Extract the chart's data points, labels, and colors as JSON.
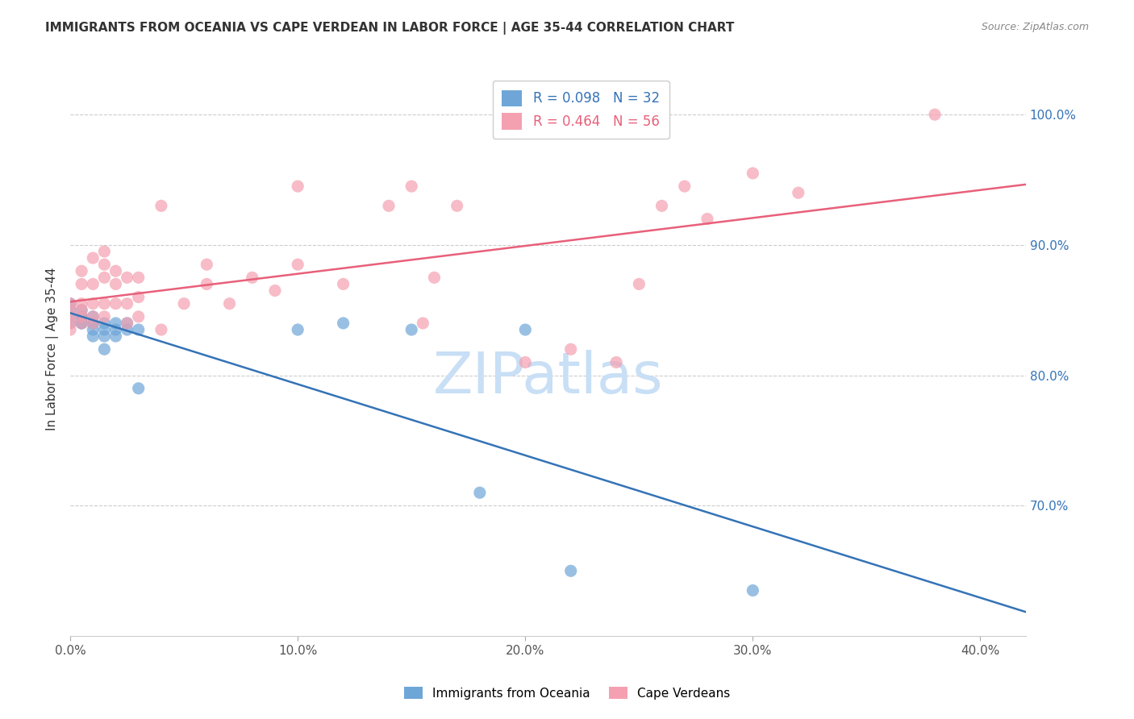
{
  "title": "IMMIGRANTS FROM OCEANIA VS CAPE VERDEAN IN LABOR FORCE | AGE 35-44 CORRELATION CHART",
  "source": "Source: ZipAtlas.com",
  "ylabel": "In Labor Force | Age 35-44",
  "right_yticks": [
    0.7,
    0.8,
    0.9,
    1.0
  ],
  "right_ytick_labels": [
    "70.0%",
    "80.0%",
    "90.0%",
    "100.0%"
  ],
  "xticks": [
    0.0,
    0.1,
    0.2,
    0.3,
    0.4
  ],
  "xtick_labels": [
    "0.0%",
    "10.0%",
    "20.0%",
    "30.0%",
    "40.0%"
  ],
  "xlim": [
    0.0,
    0.42
  ],
  "ylim": [
    0.6,
    1.04
  ],
  "blue_color": "#6ea6d8",
  "pink_color": "#f4a0b0",
  "blue_line_color": "#3473b7",
  "pink_line_color": "#e8607a",
  "legend_blue_R": "R = 0.098",
  "legend_blue_N": "N = 32",
  "legend_pink_R": "R = 0.464",
  "legend_pink_N": "N = 56",
  "watermark": "ZIPatlas",
  "watermark_color": "#c8dff5",
  "label_blue": "Immigrants from Oceania",
  "label_pink": "Cape Verdeans",
  "blue_x": [
    0.0,
    0.0,
    0.0,
    0.0,
    0.005,
    0.005,
    0.005,
    0.005,
    0.005,
    0.01,
    0.01,
    0.01,
    0.01,
    0.01,
    0.015,
    0.015,
    0.015,
    0.015,
    0.02,
    0.02,
    0.02,
    0.025,
    0.025,
    0.03,
    0.03,
    0.1,
    0.12,
    0.15,
    0.18,
    0.2,
    0.22,
    0.3
  ],
  "blue_y": [
    0.84,
    0.845,
    0.85,
    0.855,
    0.84,
    0.845,
    0.85,
    0.845,
    0.84,
    0.84,
    0.845,
    0.84,
    0.835,
    0.83,
    0.84,
    0.835,
    0.83,
    0.82,
    0.84,
    0.835,
    0.83,
    0.84,
    0.835,
    0.835,
    0.79,
    0.835,
    0.84,
    0.835,
    0.71,
    0.835,
    0.65,
    0.635
  ],
  "pink_x": [
    0.0,
    0.0,
    0.0,
    0.0,
    0.0,
    0.005,
    0.005,
    0.005,
    0.005,
    0.005,
    0.005,
    0.01,
    0.01,
    0.01,
    0.01,
    0.01,
    0.015,
    0.015,
    0.015,
    0.015,
    0.015,
    0.02,
    0.02,
    0.02,
    0.025,
    0.025,
    0.025,
    0.03,
    0.03,
    0.03,
    0.04,
    0.04,
    0.05,
    0.06,
    0.06,
    0.07,
    0.08,
    0.09,
    0.1,
    0.1,
    0.12,
    0.14,
    0.15,
    0.155,
    0.16,
    0.17,
    0.2,
    0.22,
    0.24,
    0.25,
    0.26,
    0.27,
    0.28,
    0.3,
    0.32,
    0.38
  ],
  "pink_y": [
    0.845,
    0.855,
    0.85,
    0.84,
    0.835,
    0.84,
    0.845,
    0.855,
    0.85,
    0.88,
    0.87,
    0.84,
    0.845,
    0.855,
    0.87,
    0.89,
    0.845,
    0.855,
    0.875,
    0.885,
    0.895,
    0.855,
    0.87,
    0.88,
    0.84,
    0.855,
    0.875,
    0.845,
    0.86,
    0.875,
    0.93,
    0.835,
    0.855,
    0.87,
    0.885,
    0.855,
    0.875,
    0.865,
    0.885,
    0.945,
    0.87,
    0.93,
    0.945,
    0.84,
    0.875,
    0.93,
    0.81,
    0.82,
    0.81,
    0.87,
    0.93,
    0.945,
    0.92,
    0.955,
    0.94,
    1.0
  ]
}
